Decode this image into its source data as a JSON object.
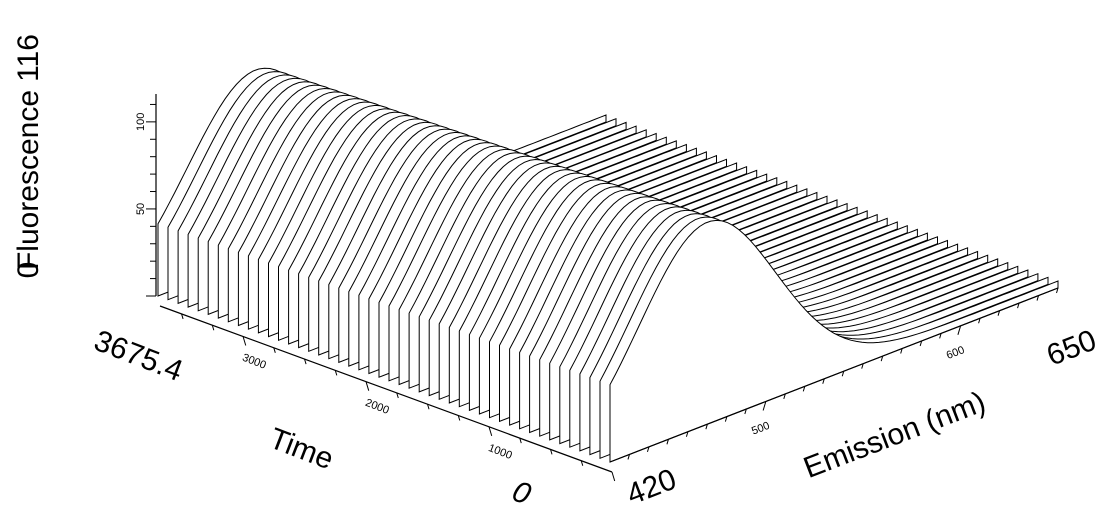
{
  "chart_data": {
    "type": "waterfall-3d",
    "title": "",
    "axes": {
      "emission": {
        "label": "Emission (nm)",
        "range": [
          420,
          650
        ],
        "ticks": [
          500,
          600
        ],
        "end_labels": [
          "420",
          "650"
        ]
      },
      "time": {
        "label": "Time",
        "range": [
          0,
          3675.4
        ],
        "ticks": [
          1000,
          2000,
          3000
        ],
        "end_labels": [
          "0",
          "3675.4"
        ]
      },
      "fluorescence": {
        "label": "Fluorescence",
        "range": [
          0,
          116
        ],
        "ticks": [
          50,
          100
        ],
        "end_labels": [
          "0",
          "116"
        ]
      }
    },
    "spectrum_shape": {
      "description_free_model": "gaussian",
      "peak_emission": 470,
      "peak_width_sigma": 35,
      "peak_fluorescence_start": 116,
      "peak_fluorescence_end": 108,
      "baseline": 4
    },
    "series_count": 46,
    "grid": false,
    "legend": "none"
  }
}
